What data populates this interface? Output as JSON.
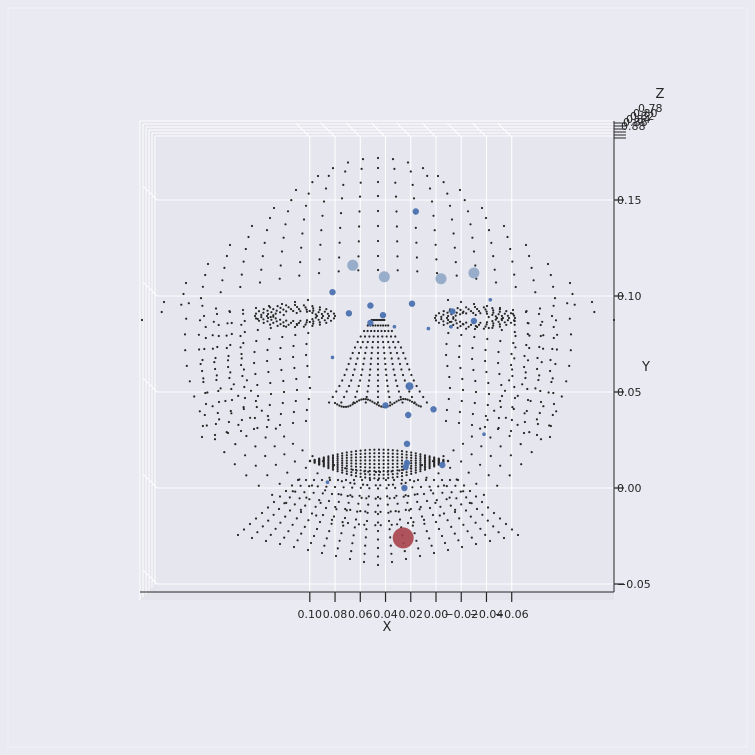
{
  "chart_data": {
    "type": "scatter",
    "projection": "3d-front-view",
    "colors": {
      "figure_bg": "#EAEAF2",
      "pane_back": "#E6E6EE",
      "grid": "#FFFFFF",
      "mesh_points": "#262626",
      "landmarks": "#4C72B0",
      "landmarks_faded": "#8FA6C4",
      "highlight": "#A7414A",
      "axis_line": "#262626"
    },
    "x_axis": {
      "label": "X",
      "ticks": [
        0.1,
        0.08,
        0.06,
        0.04,
        0.02,
        0.0,
        -0.02,
        -0.04,
        -0.06
      ],
      "tick_labels": [
        "0.10",
        "0.08",
        "0.06",
        "0.04",
        "0.02",
        "0.00",
        "−0.02",
        "−0.04",
        "−0.06"
      ],
      "range": [
        0.11,
        -0.07
      ],
      "inverted": true
    },
    "y_axis": {
      "label": "Y",
      "ticks": [
        0.15,
        0.1,
        0.05,
        0.0,
        -0.05
      ],
      "tick_labels": [
        "0.15",
        "0.10",
        "0.05",
        "0.00",
        "−0.05"
      ],
      "range": [
        -0.055,
        0.175
      ]
    },
    "z_axis": {
      "label": "Z",
      "tick_labels": [
        "0.78",
        "0.80",
        "0.82",
        "0.84",
        "0.86",
        "0.88"
      ]
    },
    "grid": true,
    "landmark_series": [
      {
        "x": 0.066,
        "y": 0.116,
        "size": "large",
        "faded": true
      },
      {
        "x": 0.041,
        "y": 0.11,
        "size": "large",
        "faded": true
      },
      {
        "x": -0.004,
        "y": 0.109,
        "size": "large",
        "faded": true
      },
      {
        "x": -0.03,
        "y": 0.112,
        "size": "large",
        "faded": true
      },
      {
        "x": 0.016,
        "y": 0.144,
        "size": "small",
        "faded": false
      },
      {
        "x": 0.082,
        "y": 0.102,
        "size": "small",
        "faded": false
      },
      {
        "x": 0.069,
        "y": 0.091,
        "size": "small",
        "faded": false
      },
      {
        "x": 0.052,
        "y": 0.095,
        "size": "small",
        "faded": false
      },
      {
        "x": 0.052,
        "y": 0.086,
        "size": "small",
        "faded": false
      },
      {
        "x": 0.042,
        "y": 0.09,
        "size": "small",
        "faded": false
      },
      {
        "x": 0.019,
        "y": 0.096,
        "size": "small",
        "faded": false
      },
      {
        "x": -0.013,
        "y": 0.092,
        "size": "small",
        "faded": false
      },
      {
        "x": -0.03,
        "y": 0.087,
        "size": "small",
        "faded": false
      },
      {
        "x": 0.021,
        "y": 0.053,
        "size": "medium",
        "faded": false
      },
      {
        "x": 0.04,
        "y": 0.043,
        "size": "small",
        "faded": false
      },
      {
        "x": 0.002,
        "y": 0.041,
        "size": "small",
        "faded": false
      },
      {
        "x": 0.022,
        "y": 0.038,
        "size": "small",
        "faded": false
      },
      {
        "x": 0.023,
        "y": 0.023,
        "size": "small",
        "faded": false
      },
      {
        "x": 0.023,
        "y": 0.013,
        "size": "small",
        "faded": false
      },
      {
        "x": 0.024,
        "y": 0.011,
        "size": "small",
        "faded": false
      },
      {
        "x": -0.005,
        "y": 0.012,
        "size": "small",
        "faded": false
      },
      {
        "x": 0.025,
        "y": 0.0,
        "size": "small",
        "faded": false
      },
      {
        "x": 0.033,
        "y": 0.084,
        "size": "tiny",
        "faded": false
      },
      {
        "x": 0.006,
        "y": 0.083,
        "size": "tiny",
        "faded": false
      },
      {
        "x": -0.043,
        "y": 0.098,
        "size": "tiny",
        "faded": false
      },
      {
        "x": -0.038,
        "y": 0.028,
        "size": "tiny",
        "faded": false
      },
      {
        "x": 0.082,
        "y": 0.068,
        "size": "tiny",
        "faded": false
      },
      {
        "x": 0.086,
        "y": 0.003,
        "size": "tiny",
        "faded": false
      },
      {
        "x": -0.012,
        "y": 0.084,
        "size": "tiny",
        "faded": false
      }
    ],
    "highlight_point": {
      "x": 0.026,
      "y": -0.026,
      "size": "xlarge"
    }
  }
}
